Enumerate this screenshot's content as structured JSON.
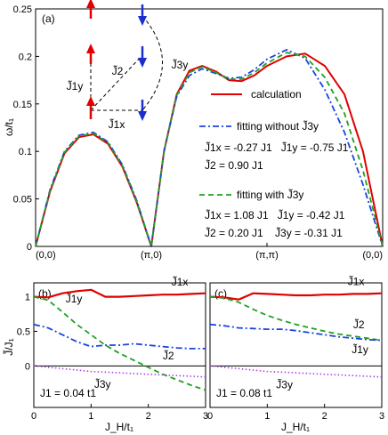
{
  "chart_data": [
    {
      "type": "line",
      "panel": "(a)",
      "ylabel": "ω/t₁",
      "ylim": [
        0,
        0.25
      ],
      "yticks": [
        "0",
        "0.05",
        "0.1",
        "0.15",
        "0.2",
        "0.25"
      ],
      "xticks": [
        "(0,0)",
        "(π,0)",
        "(π,π)",
        "(0,0)"
      ],
      "x": [
        0,
        0.125,
        0.25,
        0.375,
        0.5,
        0.625,
        0.75,
        0.875,
        1,
        1.11,
        1.22,
        1.33,
        1.44,
        1.56,
        1.67,
        1.78,
        1.89,
        2,
        2.17,
        2.33,
        2.5,
        2.67,
        2.83,
        3
      ],
      "series": [
        {
          "name": "calculation",
          "color": "#e00000",
          "style": "solid",
          "values": [
            0,
            0.058,
            0.098,
            0.115,
            0.118,
            0.108,
            0.084,
            0.046,
            0,
            0.1,
            0.16,
            0.185,
            0.19,
            0.184,
            0.175,
            0.174,
            0.18,
            0.19,
            0.2,
            0.203,
            0.19,
            0.16,
            0.1,
            0
          ]
        },
        {
          "name": "fitting without J̃3y",
          "color": "#1a44e0",
          "style": "dashdot",
          "values": [
            0,
            0.06,
            0.1,
            0.117,
            0.12,
            0.11,
            0.086,
            0.048,
            0,
            0.1,
            0.158,
            0.18,
            0.187,
            0.182,
            0.177,
            0.178,
            0.186,
            0.197,
            0.207,
            0.198,
            0.165,
            0.12,
            0.065,
            0
          ]
        },
        {
          "name": "fitting with J̃3y",
          "color": "#1fa01f",
          "style": "dashed",
          "values": [
            0,
            0.059,
            0.099,
            0.116,
            0.119,
            0.109,
            0.085,
            0.047,
            0,
            0.1,
            0.159,
            0.183,
            0.189,
            0.183,
            0.176,
            0.176,
            0.183,
            0.193,
            0.204,
            0.2,
            0.178,
            0.14,
            0.08,
            0
          ]
        }
      ],
      "legend": "right",
      "annotations": {
        "calculation_label": "calculation",
        "fit_without_label": "fitting without J̃3y",
        "fit_without_params_1": "J̃1x = -0.27 J1   J̃1y = -0.75 J1",
        "fit_without_params_2": "J̃2 = 0.90 J1",
        "fit_with_label": "fitting with J̃3y",
        "fit_with_params_1": "J̃1x = 1.08 J1   J̃1y = -0.42 J1",
        "fit_with_params_2": "J̃2 = 0.20 J1    J̃3y = -0.31 J1",
        "inset_J1y": "J̃1y",
        "inset_J2": "J̃2",
        "inset_J1x": "J̃1x",
        "inset_J3y": "J̃3y"
      }
    },
    {
      "type": "line",
      "panel": "(b)",
      "ylabel": "J̃/J₁",
      "xlabel": "J_H/t₁",
      "xlim": [
        0,
        3
      ],
      "ylim": [
        -0.6,
        1.2
      ],
      "xticks": [
        "0",
        "1",
        "2",
        "3"
      ],
      "yticks": [
        "0",
        "0.5",
        "1"
      ],
      "note": "J1 = 0.04 t1",
      "x": [
        0,
        0.25,
        0.5,
        0.75,
        1,
        1.25,
        1.5,
        1.75,
        2,
        2.25,
        2.5,
        2.75,
        3
      ],
      "series": [
        {
          "name": "J̃1x",
          "color": "#e00000",
          "style": "solid",
          "values": [
            1.0,
            0.99,
            1.05,
            1.08,
            1.1,
            1.0,
            1.0,
            1.01,
            1.02,
            1.03,
            1.03,
            1.04,
            1.05
          ]
        },
        {
          "name": "J̃1y",
          "color": "#1fa01f",
          "style": "dashed",
          "values": [
            1.0,
            0.95,
            0.78,
            0.6,
            0.45,
            0.3,
            0.18,
            0.08,
            -0.02,
            -0.12,
            -0.2,
            -0.28,
            -0.35
          ]
        },
        {
          "name": "J̃2",
          "color": "#1a44e0",
          "style": "dashdot",
          "values": [
            0.6,
            0.55,
            0.45,
            0.35,
            0.28,
            0.3,
            0.3,
            0.32,
            0.3,
            0.28,
            0.26,
            0.25,
            0.25
          ]
        },
        {
          "name": "J̃3y",
          "color": "#b040e0",
          "style": "dotted",
          "values": [
            0,
            -0.02,
            -0.04,
            -0.06,
            -0.08,
            -0.09,
            -0.1,
            -0.11,
            -0.12,
            -0.13,
            -0.14,
            -0.15,
            -0.16
          ]
        }
      ]
    },
    {
      "type": "line",
      "panel": "(c)",
      "xlabel": "J_H/t₁",
      "xlim": [
        0,
        3
      ],
      "ylim": [
        -0.6,
        1.2
      ],
      "xticks": [
        "0",
        "1",
        "2",
        "3"
      ],
      "note": "J1 = 0.08 t1",
      "x": [
        0,
        0.25,
        0.5,
        0.75,
        1,
        1.25,
        1.5,
        1.75,
        2,
        2.25,
        2.5,
        2.75,
        3
      ],
      "series": [
        {
          "name": "J̃1x",
          "color": "#e00000",
          "style": "solid",
          "values": [
            1.0,
            0.99,
            0.96,
            1.05,
            1.04,
            1.03,
            1.02,
            1.02,
            1.03,
            1.03,
            1.04,
            1.04,
            1.05
          ]
        },
        {
          "name": "J̃1y",
          "color": "#1fa01f",
          "style": "dashed",
          "values": [
            1.0,
            0.98,
            0.92,
            0.82,
            0.73,
            0.66,
            0.6,
            0.55,
            0.5,
            0.46,
            0.43,
            0.4,
            0.37
          ]
        },
        {
          "name": "J̃2",
          "color": "#1a44e0",
          "style": "dashdot",
          "values": [
            0.6,
            0.58,
            0.55,
            0.54,
            0.53,
            0.53,
            0.51,
            0.48,
            0.45,
            0.42,
            0.4,
            0.38,
            0.37
          ]
        },
        {
          "name": "J̃3y",
          "color": "#b040e0",
          "style": "dotted",
          "values": [
            0,
            -0.02,
            -0.04,
            -0.06,
            -0.08,
            -0.09,
            -0.1,
            -0.11,
            -0.12,
            -0.13,
            -0.14,
            -0.15,
            -0.16
          ]
        }
      ]
    }
  ]
}
